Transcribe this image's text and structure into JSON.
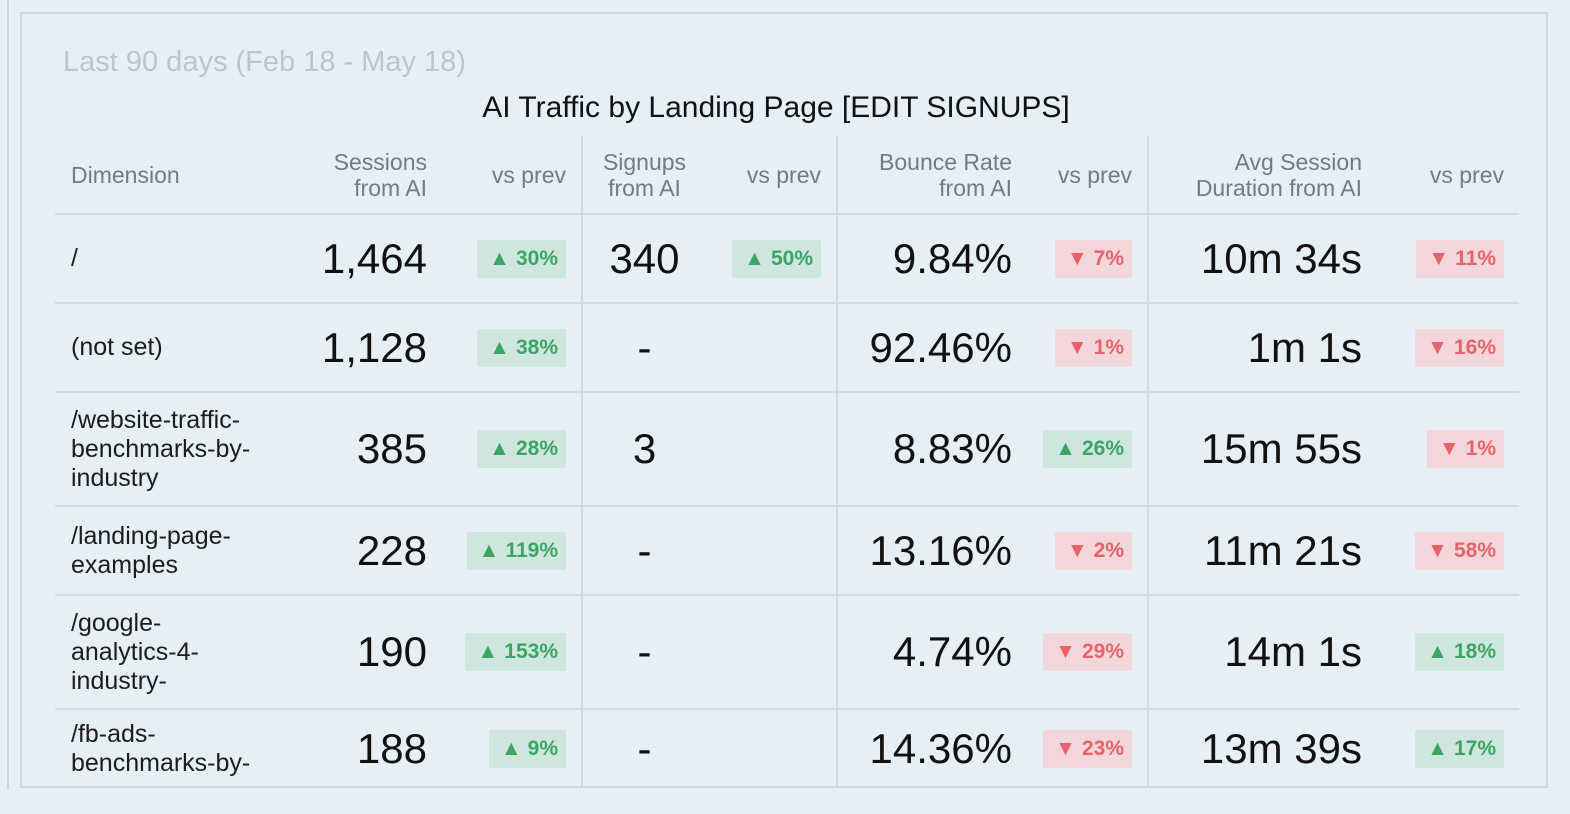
{
  "date_range": "Last 90 days (Feb 18 - May 18)",
  "title": "AI Traffic by Landing Page [EDIT SIGNUPS]",
  "colors": {
    "up_text": "#3ca564",
    "up_bg": "#cfe6de",
    "down_text": "#e6636c",
    "down_bg": "#f2d6d9",
    "background": "#e6eff6"
  },
  "icons": {
    "up": "triangle-up-icon",
    "down": "triangle-down-icon",
    "up_glyph": "▲",
    "down_glyph": "▼"
  },
  "columns": {
    "dimension": "Dimension",
    "sessions": [
      "Sessions",
      "from AI"
    ],
    "signups": [
      "Signups",
      "from AI"
    ],
    "bounce": [
      "Bounce Rate",
      "from AI"
    ],
    "duration": [
      "Avg Session",
      "Duration from AI"
    ],
    "vs_prev": "vs prev"
  },
  "rows": [
    {
      "dimension": [
        "/"
      ],
      "sessions": "1,464",
      "sessions_change": {
        "dir": "up",
        "value": "30%"
      },
      "signups": "340",
      "signups_change": {
        "dir": "up",
        "value": "50%"
      },
      "bounce": "9.84%",
      "bounce_change": {
        "dir": "down",
        "value": "7%"
      },
      "duration": "10m 34s",
      "duration_change": {
        "dir": "down",
        "value": "11%"
      }
    },
    {
      "dimension": [
        "(not set)"
      ],
      "sessions": "1,128",
      "sessions_change": {
        "dir": "up",
        "value": "38%"
      },
      "signups": "-",
      "signups_change": null,
      "bounce": "92.46%",
      "bounce_change": {
        "dir": "down",
        "value": "1%"
      },
      "duration": "1m 1s",
      "duration_change": {
        "dir": "down",
        "value": "16%"
      }
    },
    {
      "dimension": [
        "/website-traffic-",
        "benchmarks-by-",
        "industry"
      ],
      "sessions": "385",
      "sessions_change": {
        "dir": "up",
        "value": "28%"
      },
      "signups": "3",
      "signups_change": null,
      "bounce": "8.83%",
      "bounce_change": {
        "dir": "up",
        "value": "26%"
      },
      "duration": "15m 55s",
      "duration_change": {
        "dir": "down",
        "value": "1%"
      }
    },
    {
      "dimension": [
        "/landing-page-",
        "examples"
      ],
      "sessions": "228",
      "sessions_change": {
        "dir": "up",
        "value": "119%"
      },
      "signups": "-",
      "signups_change": null,
      "bounce": "13.16%",
      "bounce_change": {
        "dir": "down",
        "value": "2%"
      },
      "duration": "11m 21s",
      "duration_change": {
        "dir": "down",
        "value": "58%"
      }
    },
    {
      "dimension": [
        "/google-",
        "analytics-4-",
        "industry-"
      ],
      "sessions": "190",
      "sessions_change": {
        "dir": "up",
        "value": "153%"
      },
      "signups": "-",
      "signups_change": null,
      "bounce": "4.74%",
      "bounce_change": {
        "dir": "down",
        "value": "29%"
      },
      "duration": "14m 1s",
      "duration_change": {
        "dir": "up",
        "value": "18%"
      }
    },
    {
      "dimension": [
        "/fb-ads-",
        "benchmarks-by-"
      ],
      "sessions": "188",
      "sessions_change": {
        "dir": "up",
        "value": "9%"
      },
      "signups": "-",
      "signups_change": null,
      "bounce": "14.36%",
      "bounce_change": {
        "dir": "down",
        "value": "23%"
      },
      "duration": "13m 39s",
      "duration_change": {
        "dir": "up",
        "value": "17%"
      }
    }
  ]
}
